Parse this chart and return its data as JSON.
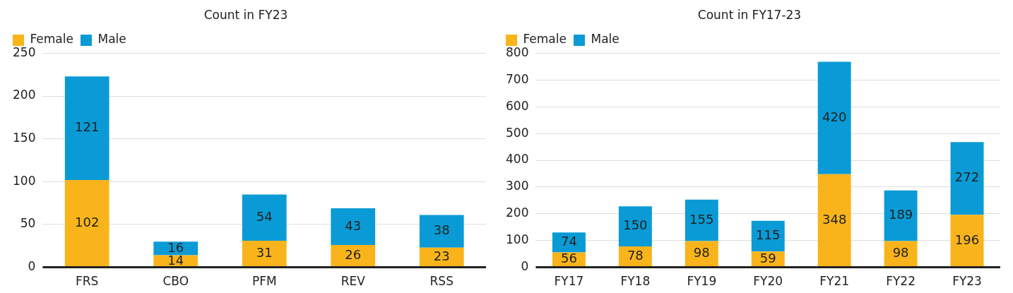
{
  "chart_data": [
    {
      "type": "bar",
      "title": "Count in FY23",
      "categories": [
        "FRS",
        "CBO",
        "PFM",
        "REV",
        "RSS"
      ],
      "stacked": true,
      "data_labels": true,
      "legend": "top left",
      "grid": "y",
      "ylim": [
        0,
        250
      ],
      "yticks": [
        0,
        50,
        100,
        150,
        200,
        250
      ],
      "series": [
        {
          "name": "Female",
          "color": "#f9b41b",
          "values": [
            102,
            14,
            31,
            26,
            23
          ]
        },
        {
          "name": "Male",
          "color": "#0a9bd6",
          "values": [
            121,
            16,
            54,
            43,
            38
          ]
        }
      ]
    },
    {
      "type": "bar",
      "title": "Count in FY17-23",
      "categories": [
        "FY17",
        "FY18",
        "FY19",
        "FY20",
        "FY21",
        "FY22",
        "FY23"
      ],
      "stacked": true,
      "data_labels": true,
      "legend": "top left",
      "grid": "y",
      "ylim": [
        0,
        800
      ],
      "yticks": [
        0,
        100,
        200,
        300,
        400,
        500,
        600,
        700,
        800
      ],
      "series": [
        {
          "name": "Female",
          "color": "#f9b41b",
          "values": [
            56,
            78,
            98,
            59,
            348,
            98,
            196
          ]
        },
        {
          "name": "Male",
          "color": "#0a9bd6",
          "values": [
            74,
            150,
            155,
            115,
            420,
            189,
            272
          ]
        }
      ]
    }
  ]
}
